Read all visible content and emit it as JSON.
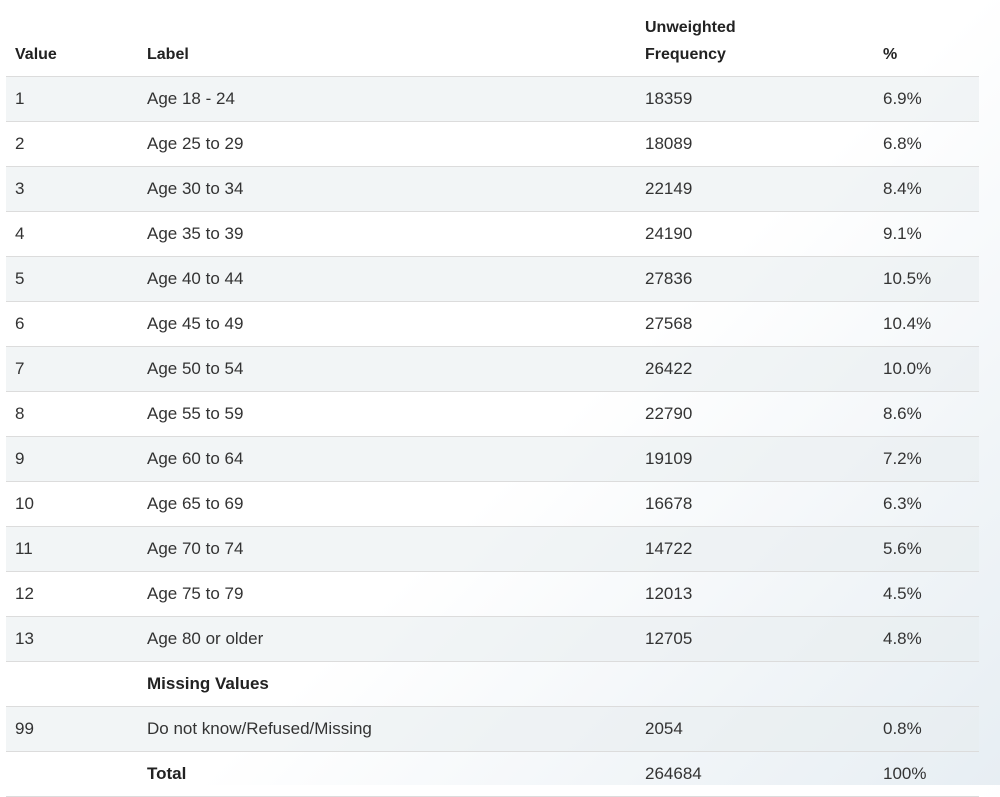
{
  "table": {
    "headers": {
      "value": "Value",
      "label": "Label",
      "freq_line1": "Unweighted",
      "freq_line2": "Frequency",
      "pct": "%"
    },
    "rows": [
      {
        "value": "1",
        "label": "Age 18 - 24",
        "freq": "18359",
        "pct": "6.9%"
      },
      {
        "value": "2",
        "label": "Age 25 to 29",
        "freq": "18089",
        "pct": "6.8%"
      },
      {
        "value": "3",
        "label": "Age 30 to 34",
        "freq": "22149",
        "pct": "8.4%"
      },
      {
        "value": "4",
        "label": "Age 35 to 39",
        "freq": "24190",
        "pct": "9.1%"
      },
      {
        "value": "5",
        "label": "Age 40 to 44",
        "freq": "27836",
        "pct": "10.5%"
      },
      {
        "value": "6",
        "label": "Age 45 to 49",
        "freq": "27568",
        "pct": "10.4%"
      },
      {
        "value": "7",
        "label": "Age 50 to 54",
        "freq": "26422",
        "pct": "10.0%"
      },
      {
        "value": "8",
        "label": "Age 55 to 59",
        "freq": "22790",
        "pct": "8.6%"
      },
      {
        "value": "9",
        "label": "Age 60 to 64",
        "freq": "19109",
        "pct": "7.2%"
      },
      {
        "value": "10",
        "label": "Age 65 to 69",
        "freq": "16678",
        "pct": "6.3%"
      },
      {
        "value": "11",
        "label": "Age 70 to 74",
        "freq": "14722",
        "pct": "5.6%"
      },
      {
        "value": "12",
        "label": "Age 75 to 79",
        "freq": "12013",
        "pct": "4.5%"
      },
      {
        "value": "13",
        "label": "Age 80 or older",
        "freq": "12705",
        "pct": "4.8%"
      }
    ],
    "missing_heading": "Missing Values",
    "missing_rows": [
      {
        "value": "99",
        "label": "Do not know/Refused/Missing",
        "freq": "2054",
        "pct": "0.8%"
      }
    ],
    "total": {
      "label": "Total",
      "freq": "264684",
      "pct": "100%"
    }
  }
}
